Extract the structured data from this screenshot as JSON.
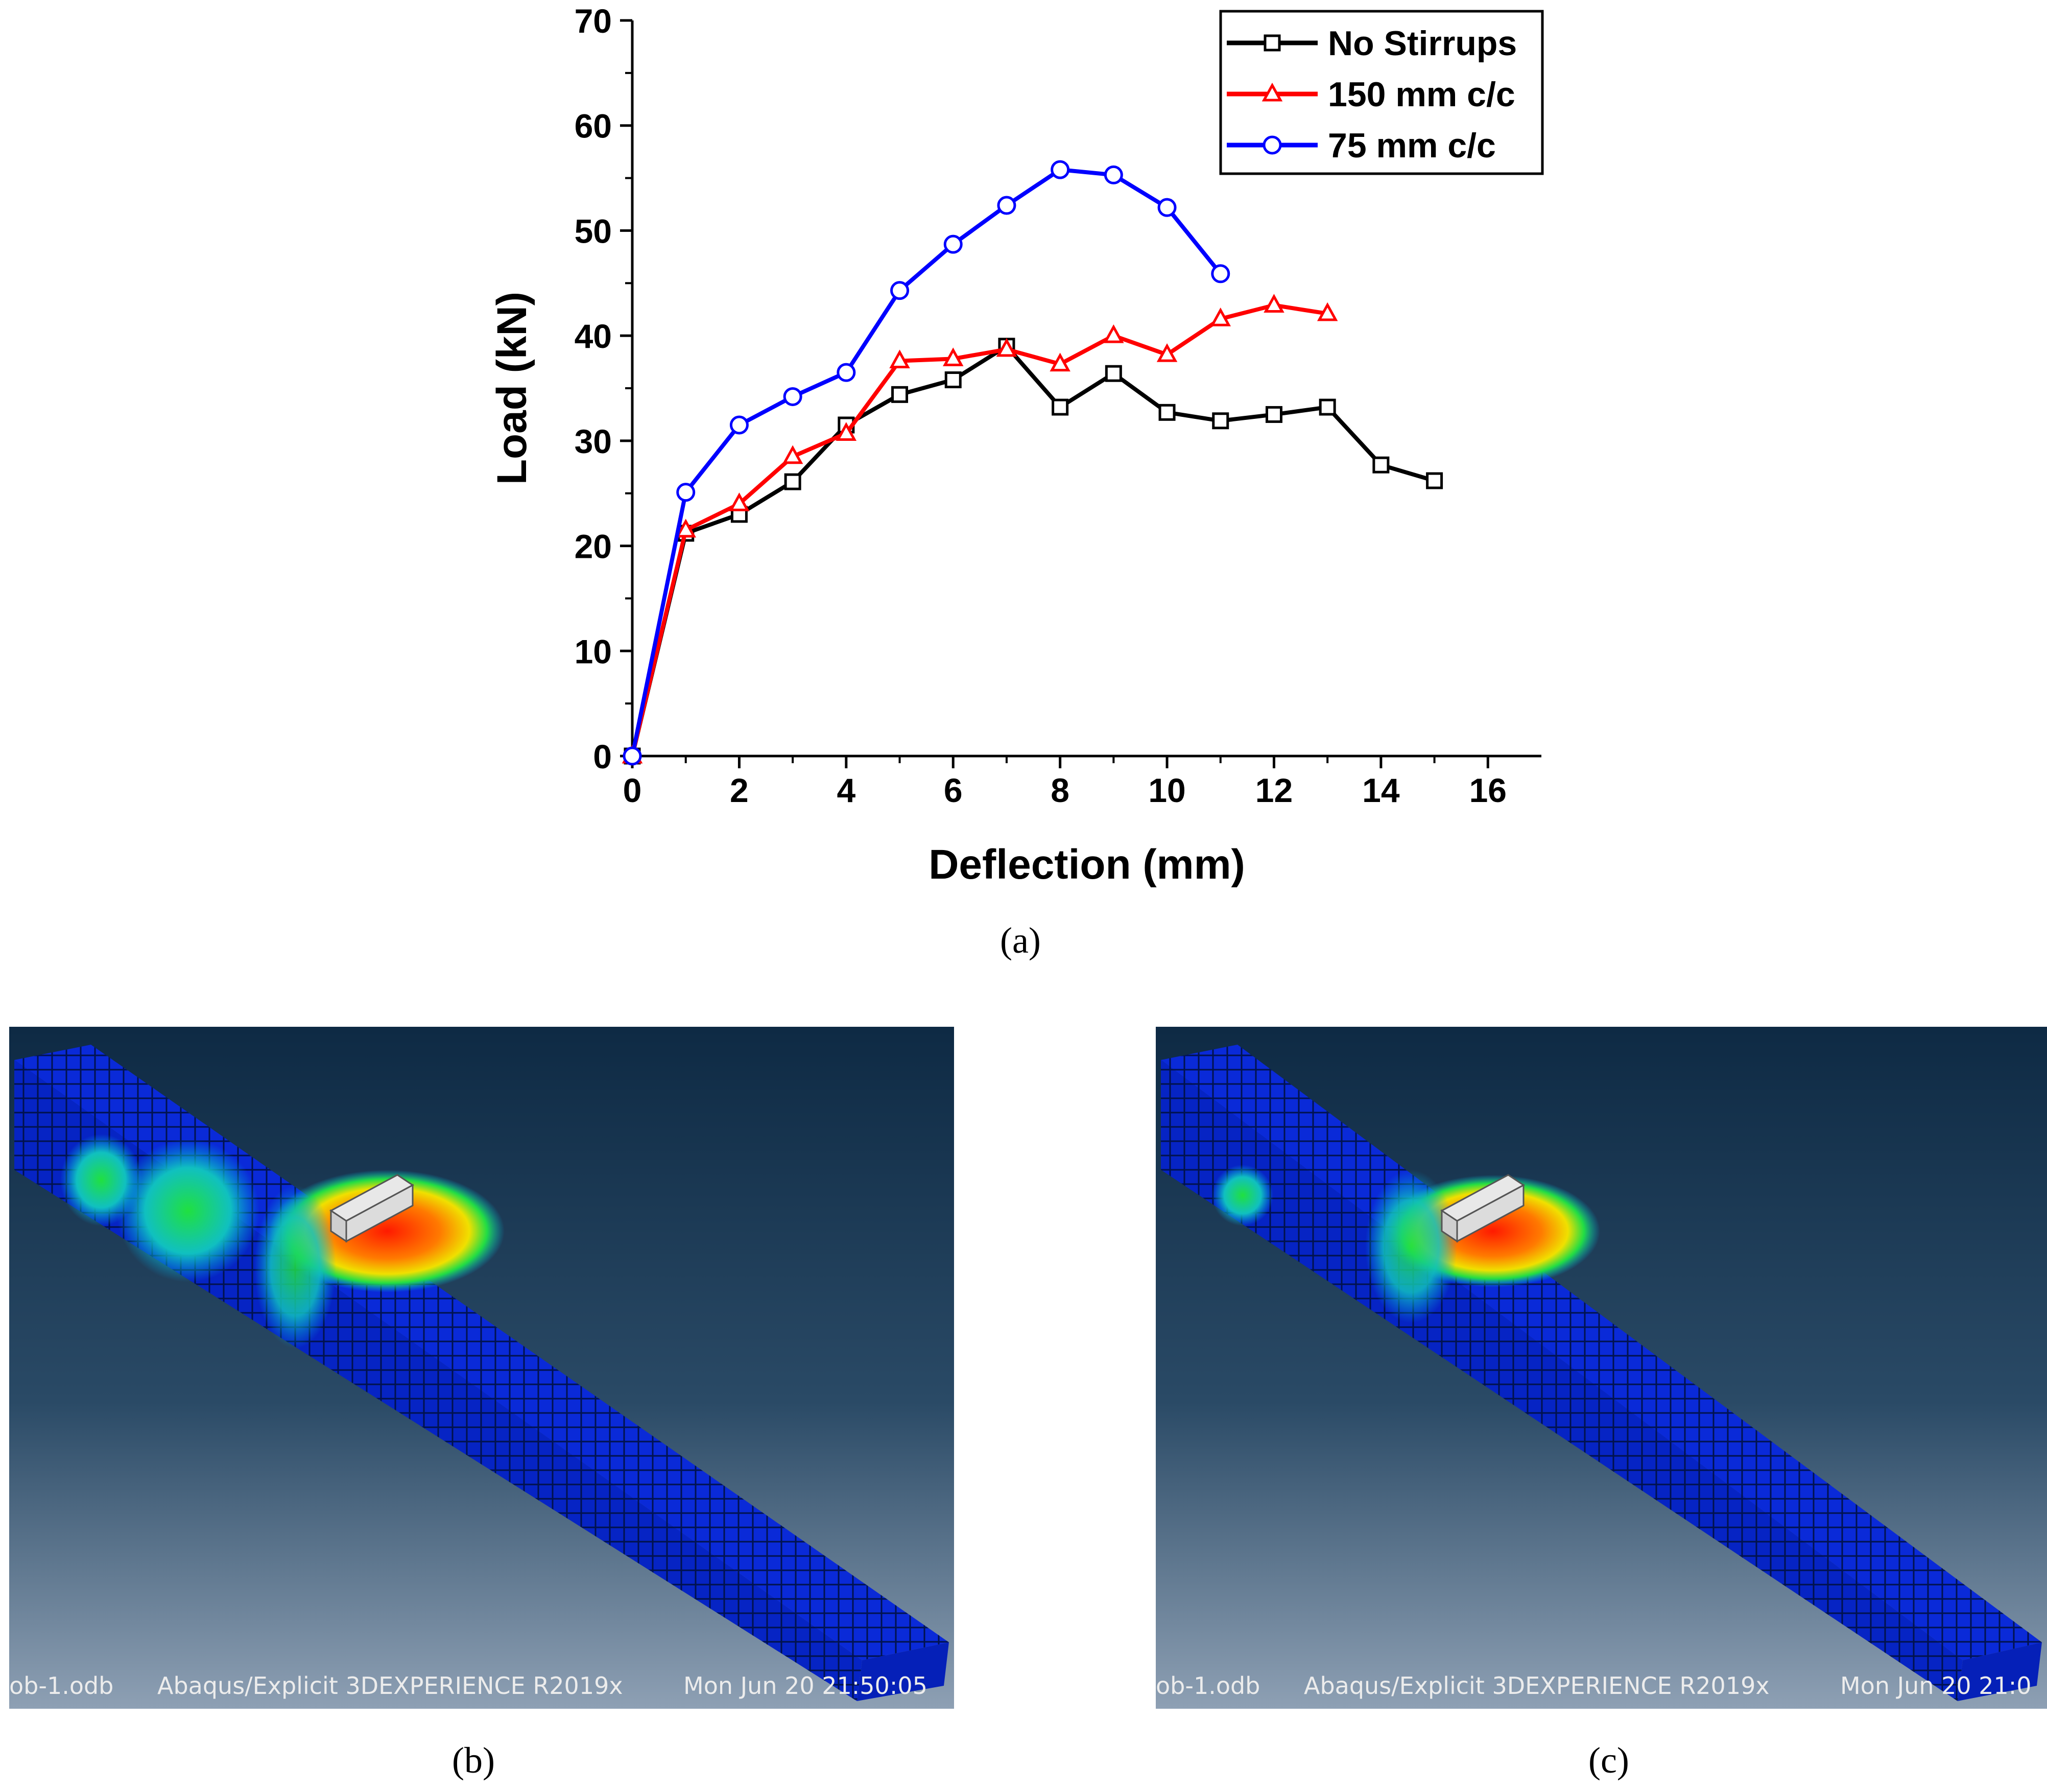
{
  "chart_data": {
    "type": "line",
    "xlabel": "Deflection (mm)",
    "ylabel": "Load (kN)",
    "xlim": [
      0,
      17
    ],
    "ylim": [
      0,
      70
    ],
    "xticks": [
      0,
      2,
      4,
      6,
      8,
      10,
      12,
      14,
      16
    ],
    "yticks": [
      0,
      10,
      20,
      30,
      40,
      50,
      60,
      70
    ],
    "legend_position": "top-right",
    "series": [
      {
        "name": "No Stirrups",
        "color": "#000000",
        "marker": "square",
        "x": [
          0,
          1,
          2,
          3,
          4,
          5,
          6,
          7,
          8,
          9,
          10,
          11,
          12,
          13,
          14,
          15
        ],
        "values": [
          0,
          21.2,
          23.0,
          26.1,
          31.5,
          34.4,
          35.8,
          39.0,
          33.2,
          36.4,
          32.7,
          31.9,
          32.5,
          33.2,
          27.7,
          26.2
        ]
      },
      {
        "name": "150 mm c/c",
        "color": "#ff0000",
        "marker": "triangle",
        "x": [
          0,
          1,
          2,
          3,
          4,
          5,
          6,
          7,
          8,
          9,
          10,
          11,
          12,
          13
        ],
        "values": [
          0,
          21.5,
          24.0,
          28.5,
          30.7,
          37.6,
          37.8,
          38.7,
          37.3,
          40.0,
          38.2,
          41.6,
          42.9,
          42.1
        ]
      },
      {
        "name": "75 mm c/c",
        "color": "#0000ff",
        "marker": "circle",
        "x": [
          0,
          1,
          2,
          3,
          4,
          5,
          6,
          7,
          8,
          9,
          10,
          11
        ],
        "values": [
          0,
          25.1,
          31.5,
          34.2,
          36.5,
          44.3,
          48.7,
          52.4,
          55.8,
          55.3,
          52.2,
          45.9
        ]
      }
    ]
  },
  "captions": {
    "a": "(a)",
    "b": "(b)",
    "c": "(c)"
  },
  "panel_b": {
    "file": "ob-1.odb",
    "software": "Abaqus/Explicit 3DEXPERIENCE R2019x",
    "timestamp": "Mon Jun 20 21:50:05"
  },
  "panel_c": {
    "file": "ob-1.odb",
    "software": "Abaqus/Explicit 3DEXPERIENCE R2019x",
    "timestamp": "Mon Jun 20 21:0"
  }
}
